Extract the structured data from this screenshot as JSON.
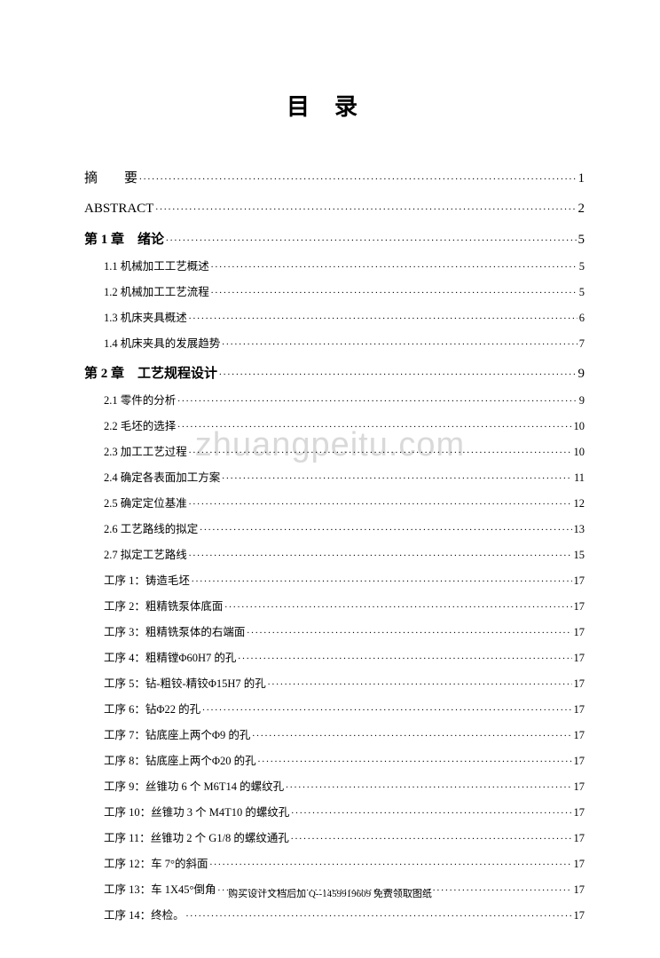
{
  "title": "目录",
  "watermark": "zhuangpeitu.com",
  "footer": "购买设计文档后加 Q--1459919609 免费领取图纸",
  "toc": [
    {
      "level": 0,
      "label": "摘　　要",
      "page": "1",
      "first": true
    },
    {
      "level": 0,
      "label": "ABSTRACT",
      "page": "2",
      "en": true
    },
    {
      "level": 0,
      "label": "第 1 章　绪论",
      "page": "5",
      "bold": true
    },
    {
      "level": 1,
      "label": "1.1 机械加工工艺概述",
      "page": "5"
    },
    {
      "level": 1,
      "label": "1.2 机械加工工艺流程",
      "page": "5"
    },
    {
      "level": 1,
      "label": "1.3 机床夹具概述",
      "page": "6"
    },
    {
      "level": 1,
      "label": "1.4 机床夹具的发展趋势",
      "page": "7"
    },
    {
      "level": 0,
      "label": "第 2 章　工艺规程设计",
      "page": "9",
      "bold": true
    },
    {
      "level": 1,
      "label": "2.1 零件的分析",
      "page": "9"
    },
    {
      "level": 1,
      "label": "2.2 毛坯的选择",
      "page": "10"
    },
    {
      "level": 1,
      "label": "2.3 加工工艺过程",
      "page": "10"
    },
    {
      "level": 1,
      "label": "2.4 确定各表面加工方案",
      "page": "11"
    },
    {
      "level": 1,
      "label": "2.5 确定定位基准",
      "page": "12"
    },
    {
      "level": 1,
      "label": "2.6 工艺路线的拟定",
      "page": "13"
    },
    {
      "level": 1,
      "label": "2.7 拟定工艺路线",
      "page": "15"
    },
    {
      "level": 1,
      "label": "工序 1：铸造毛坯",
      "page": "17"
    },
    {
      "level": 1,
      "label": "工序 2：粗精铣泵体底面",
      "page": "17"
    },
    {
      "level": 1,
      "label": "工序 3：粗精铣泵体的右端面",
      "page": "17"
    },
    {
      "level": 1,
      "label": "工序 4：粗精镗Φ60H7 的孔",
      "page": "17"
    },
    {
      "level": 1,
      "label": "工序 5：钻-粗铰-精铰Φ15H7 的孔",
      "page": "17"
    },
    {
      "level": 1,
      "label": "工序 6：钻Φ22 的孔",
      "page": "17"
    },
    {
      "level": 1,
      "label": "工序 7：钻底座上两个Φ9 的孔",
      "page": "17"
    },
    {
      "level": 1,
      "label": "工序 8：钻底座上两个Φ20 的孔",
      "page": "17"
    },
    {
      "level": 1,
      "label": "工序 9：丝锥功 6 个 M6T14 的螺纹孔",
      "page": "17"
    },
    {
      "level": 1,
      "label": "工序 10：丝锥功 3 个 M4T10 的螺纹孔",
      "page": "17"
    },
    {
      "level": 1,
      "label": "工序 11：丝锥功 2 个 G1/8 的螺纹通孔",
      "page": "17"
    },
    {
      "level": 1,
      "label": "工序 12：车 7°的斜面",
      "page": "17"
    },
    {
      "level": 1,
      "label": "工序 13：车 1X45°倒角",
      "page": "17"
    },
    {
      "level": 1,
      "label": "工序 14：终检。",
      "page": "17"
    }
  ]
}
